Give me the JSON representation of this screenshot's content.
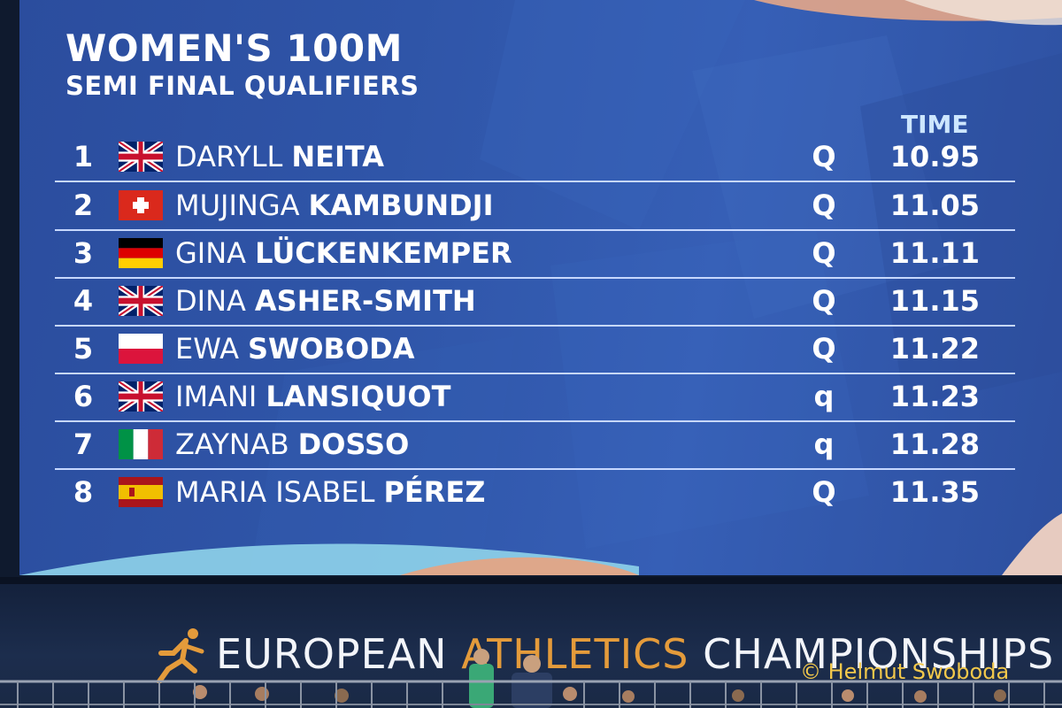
{
  "scoreboard": {
    "title": "WOMEN'S 100M",
    "subtitle": "SEMI FINAL QUALIFIERS",
    "time_header": "TIME",
    "results": [
      {
        "rank": "1",
        "flag": "great-britain-flag",
        "first": "DARYLL",
        "last": "NEITA",
        "qualifier": "Q",
        "time": "10.95"
      },
      {
        "rank": "2",
        "flag": "switzerland-flag",
        "first": "MUJINGA",
        "last": "KAMBUNDJI",
        "qualifier": "Q",
        "time": "11.05"
      },
      {
        "rank": "3",
        "flag": "germany-flag",
        "first": "GINA",
        "last": "LÜCKENKEMPER",
        "qualifier": "Q",
        "time": "11.11"
      },
      {
        "rank": "4",
        "flag": "great-britain-flag",
        "first": "DINA",
        "last": "ASHER-SMITH",
        "qualifier": "Q",
        "time": "11.15"
      },
      {
        "rank": "5",
        "flag": "poland-flag",
        "first": "EWA",
        "last": "SWOBODA",
        "qualifier": "Q",
        "time": "11.22"
      },
      {
        "rank": "6",
        "flag": "great-britain-flag",
        "first": "IMANI",
        "last": "LANSIQUOT",
        "qualifier": "q",
        "time": "11.23"
      },
      {
        "rank": "7",
        "flag": "italy-flag",
        "first": "ZAYNAB",
        "last": "DOSSO",
        "qualifier": "q",
        "time": "11.28"
      },
      {
        "rank": "8",
        "flag": "spain-flag",
        "first": "MARIA ISABEL",
        "last": "PÉREZ",
        "qualifier": "Q",
        "time": "11.35"
      }
    ]
  },
  "banner": {
    "word1": "EUROPEAN",
    "word2": "ATHLETICS",
    "word3": "CHAMPIONSHIPS",
    "logo_icon": "runner-logo-icon"
  },
  "watermark": "© Helmut Swoboda",
  "colors": {
    "screen_blue": "#2f55a8",
    "divider": "#c7d8ff",
    "time_header": "#cde6ff",
    "banner_bg": "#1c2d4d",
    "accent_orange": "#e49b3b",
    "watermark": "#f2c84b"
  }
}
